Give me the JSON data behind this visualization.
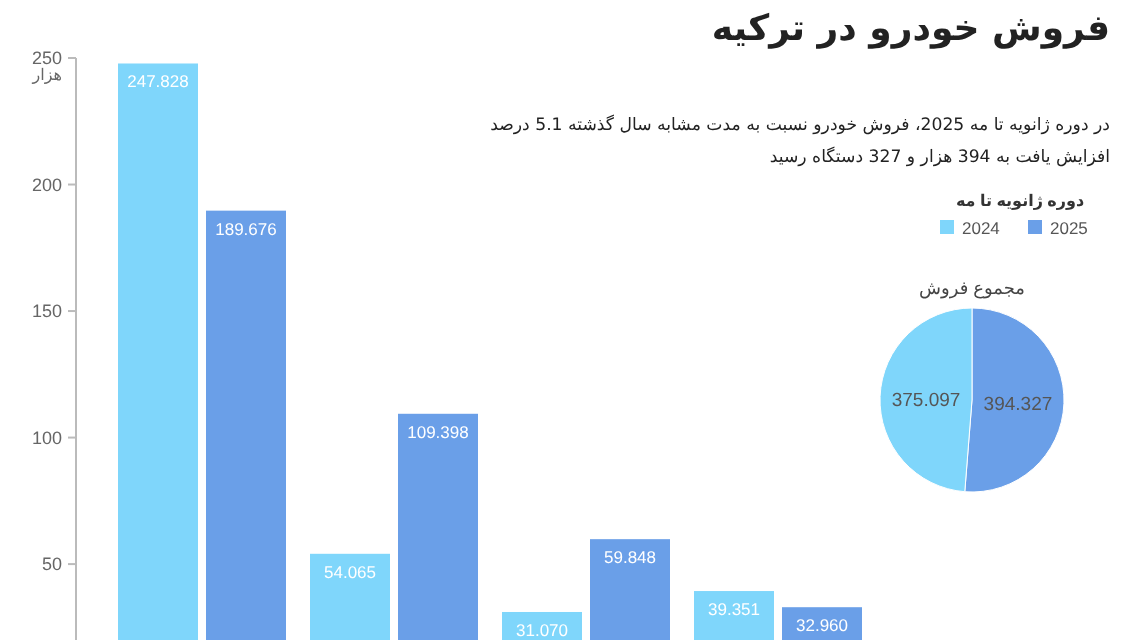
{
  "chart_data": [
    {
      "type": "bar",
      "title": "فروش خودرو در ترکیه",
      "subtitle": "در دوره ژانویه تا مه 2025، فروش خودرو نسبت به مدت مشابه سال گذشته 5.1 درصد افزایش یافت به 394 هزار و 327 دستگاه رسید",
      "ylabel": "هزار",
      "legend_title": "دوره ژانویه تا مه",
      "categories": [
        null,
        null,
        null,
        null
      ],
      "series": [
        {
          "name": "2024",
          "color": "#7fd6fb",
          "values": [
            247.828,
            54.065,
            31.07,
            39.351
          ],
          "value_labels": [
            "247.828",
            "54.065",
            "31.070",
            "39.351"
          ]
        },
        {
          "name": "2025",
          "color": "#6a9fe8",
          "values": [
            189.676,
            109.398,
            59.848,
            32.96
          ],
          "value_labels": [
            "189.676",
            "109.398",
            "59.848",
            "32.960"
          ]
        }
      ],
      "ylim": [
        20,
        250
      ],
      "yticks": [
        50,
        100,
        150,
        200,
        250
      ],
      "legend": "right",
      "grid": false
    },
    {
      "type": "pie",
      "title": "مجموع فروش",
      "categories": [
        null,
        null
      ],
      "values": [
        394.327,
        375.097
      ],
      "colors": [
        "#6a9fe8",
        "#7fd6fb"
      ],
      "data_labels": true
    }
  ]
}
